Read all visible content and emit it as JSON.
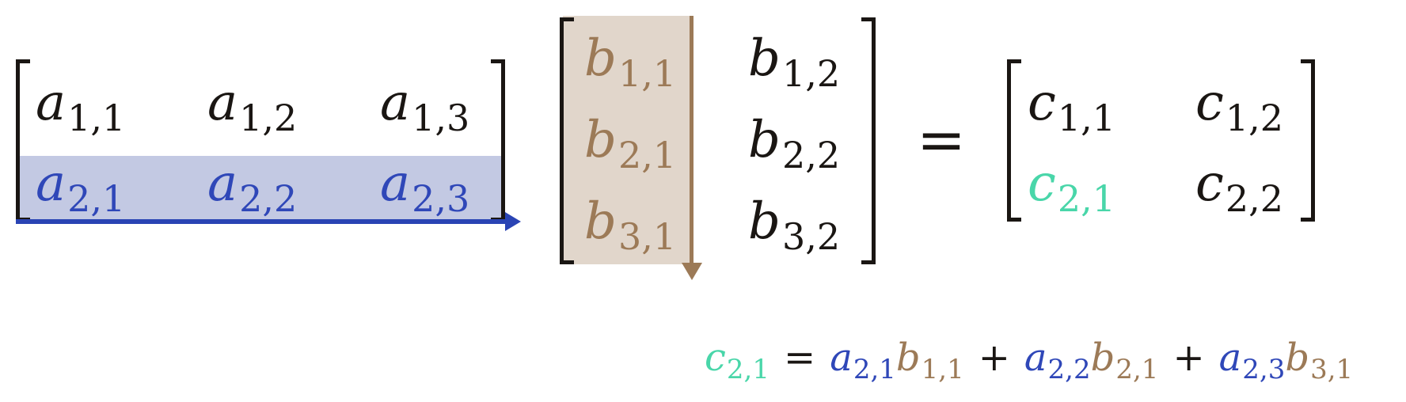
{
  "colors": {
    "text": "#1a1613",
    "row_highlight": "#c3c9e3",
    "row_text": "#2f47b8",
    "row_arrow": "#2a44b4",
    "col_highlight": "#e1d6cb",
    "col_text": "#9c7a57",
    "col_arrow": "#9c7a57",
    "result_highlight": "#49d6a9"
  },
  "matrix_a": {
    "cells": [
      [
        {
          "base": "a",
          "sub": "1,1"
        },
        {
          "base": "a",
          "sub": "1,2"
        },
        {
          "base": "a",
          "sub": "1,3"
        }
      ],
      [
        {
          "base": "a",
          "sub": "2,1"
        },
        {
          "base": "a",
          "sub": "2,2"
        },
        {
          "base": "a",
          "sub": "2,3"
        }
      ]
    ]
  },
  "matrix_b": {
    "cells": [
      [
        {
          "base": "b",
          "sub": "1,1"
        },
        {
          "base": "b",
          "sub": "1,2"
        }
      ],
      [
        {
          "base": "b",
          "sub": "2,1"
        },
        {
          "base": "b",
          "sub": "2,2"
        }
      ],
      [
        {
          "base": "b",
          "sub": "3,1"
        },
        {
          "base": "b",
          "sub": "3,2"
        }
      ]
    ]
  },
  "equals_sign": "=",
  "matrix_c": {
    "cells": [
      [
        {
          "base": "c",
          "sub": "1,1"
        },
        {
          "base": "c",
          "sub": "1,2"
        }
      ],
      [
        {
          "base": "c",
          "sub": "2,1"
        },
        {
          "base": "c",
          "sub": "2,2"
        }
      ]
    ]
  },
  "formula": {
    "lhs": {
      "base": "c",
      "sub": "2,1"
    },
    "equals": "=",
    "plus": "+",
    "terms": [
      {
        "a": {
          "base": "a",
          "sub": "2,1"
        },
        "b": {
          "base": "b",
          "sub": "1,1"
        }
      },
      {
        "a": {
          "base": "a",
          "sub": "2,2"
        },
        "b": {
          "base": "b",
          "sub": "2,1"
        }
      },
      {
        "a": {
          "base": "a",
          "sub": "2,3"
        },
        "b": {
          "base": "b",
          "sub": "3,1"
        }
      }
    ]
  }
}
